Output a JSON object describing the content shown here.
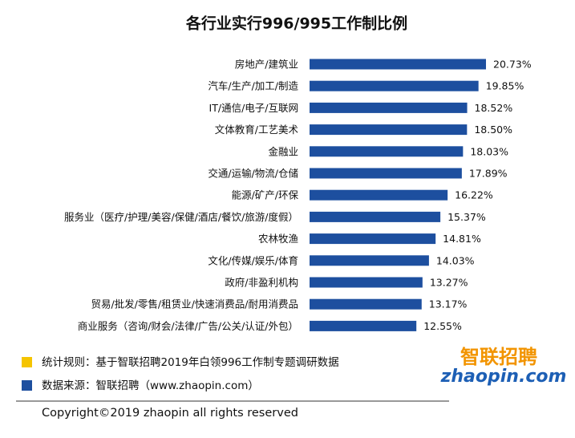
{
  "chart_data": {
    "type": "bar",
    "orientation": "horizontal",
    "title": "各行业实行996/995工作制比例",
    "categories": [
      "房地产/建筑业",
      "汽车/生产/加工/制造",
      "IT/通信/电子/互联网",
      "文体教育/工艺美术",
      "金融业",
      "交通/运输/物流/仓储",
      "能源/矿产/环保",
      "服务业（医疗/护理/美容/保健/酒店/餐饮/旅游/度假）",
      "农林牧渔",
      "文化/传媒/娱乐/体育",
      "政府/非盈利机构",
      "贸易/批发/零售/租赁业/快速消费品/耐用消费品",
      "商业服务（咨询/财会/法律/广告/公关/认证/外包）"
    ],
    "values": [
      20.73,
      19.85,
      18.52,
      18.5,
      18.03,
      17.89,
      16.22,
      15.37,
      14.81,
      14.03,
      13.27,
      13.17,
      12.55
    ],
    "value_labels": [
      "20.73%",
      "19.85%",
      "18.52%",
      "18.50%",
      "18.03%",
      "17.89%",
      "16.22%",
      "15.37%",
      "14.81%",
      "14.03%",
      "13.27%",
      "13.17%",
      "12.55%"
    ],
    "color": "#1d4f9f"
  },
  "notes": [
    "统计规则：基于智联招聘2019年白领996工作制专题调研数据",
    "数据来源：智联招聘（www.zhaopin.com）"
  ],
  "logo": {
    "name": "智联招聘",
    "url": "zhaopin.com"
  },
  "copyright": "Copyright©2019 zhaopin all rights reserved"
}
